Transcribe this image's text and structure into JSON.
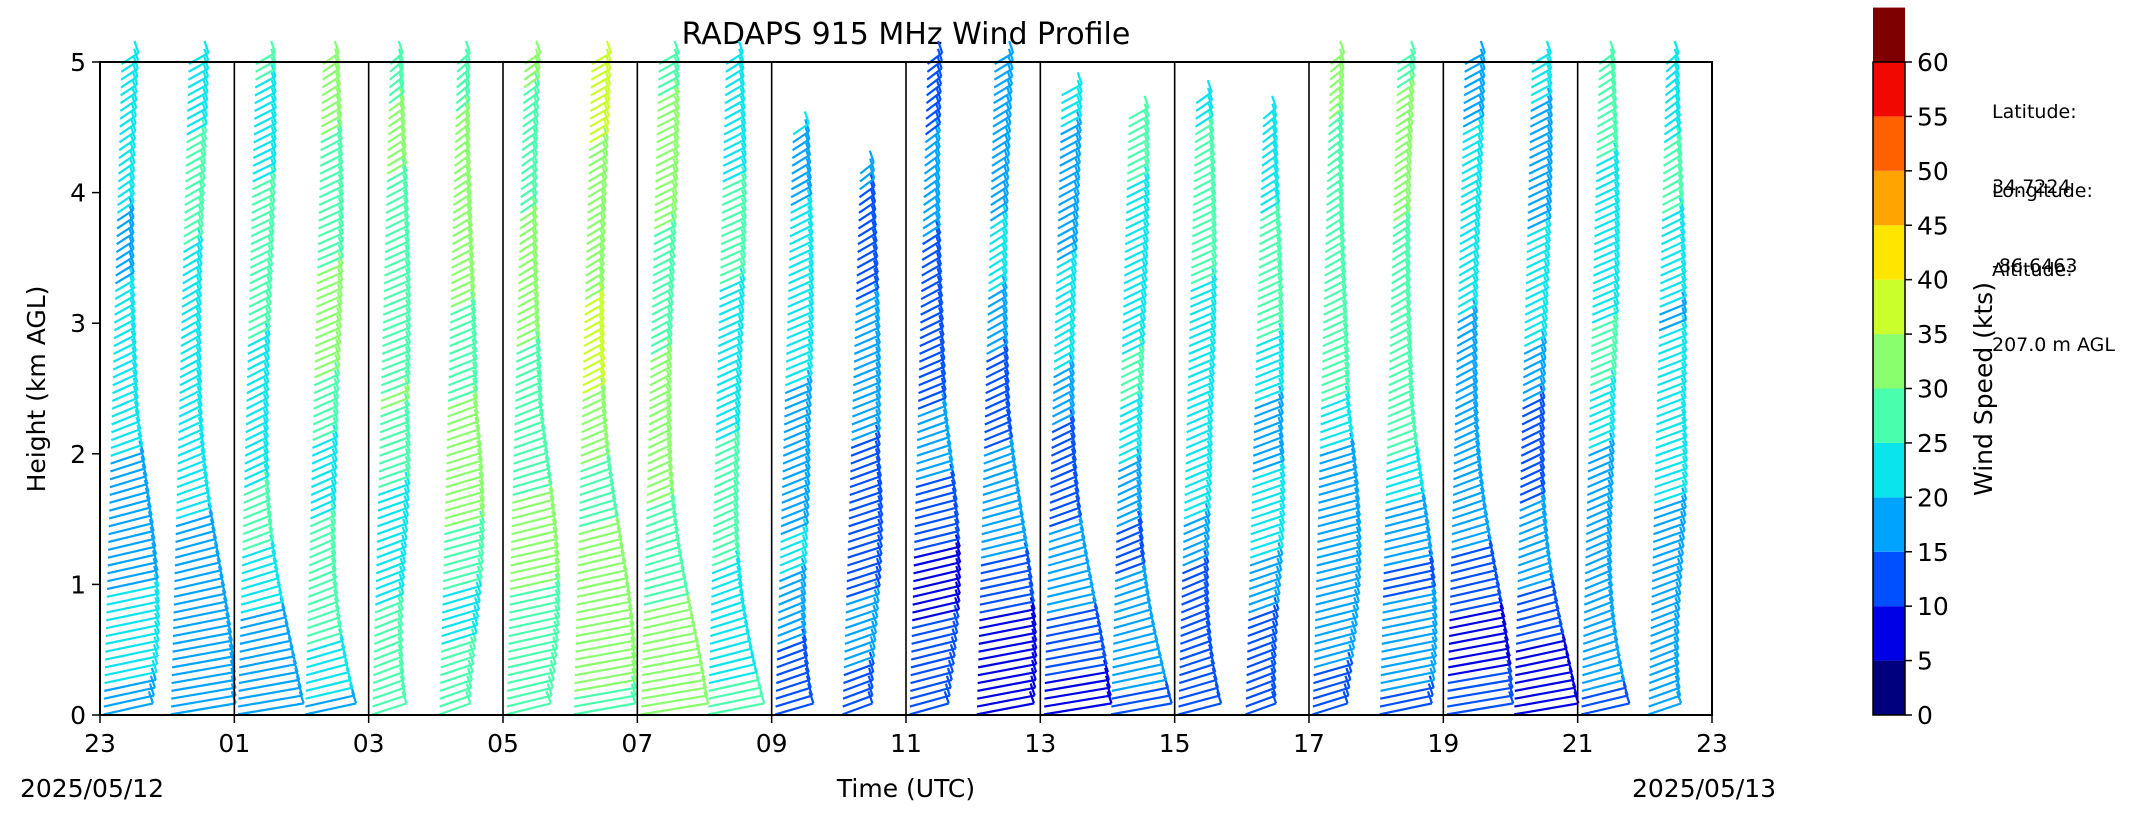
{
  "chart_data": {
    "type": "wind-barb",
    "title": "RADAPS 915 MHz Wind Profile",
    "xlabel": "Time (UTC)",
    "ylabel": "Height (km AGL)",
    "x_ticks": [
      "23",
      "01",
      "03",
      "05",
      "07",
      "09",
      "11",
      "13",
      "15",
      "17",
      "19",
      "21",
      "23"
    ],
    "x_tick_hours_utc": [
      23,
      25,
      27,
      29,
      31,
      33,
      35,
      37,
      39,
      41,
      43,
      45,
      47
    ],
    "xlim_hours_utc": [
      23,
      47
    ],
    "start_date": "2025/05/12",
    "end_date": "2025/05/13",
    "y_ticks": [
      0,
      1,
      2,
      3,
      4,
      5
    ],
    "ylim": [
      0,
      5
    ],
    "colorbar": {
      "label": "Wind Speed (kts)",
      "ticks": [
        0,
        5,
        10,
        15,
        20,
        25,
        30,
        35,
        40,
        45,
        50,
        55,
        60
      ],
      "colors": [
        "#00007f",
        "#0000e6",
        "#0050ff",
        "#00a4ff",
        "#0ae4ec",
        "#49ffad",
        "#8aff6d",
        "#cbff2c",
        "#ffe600",
        "#ffa400",
        "#ff6000",
        "#f10800",
        "#7f0000"
      ]
    },
    "profiles_hours_utc": [
      23.0,
      24.0,
      25.0,
      26.0,
      27.0,
      28.0,
      29.0,
      30.0,
      31.0,
      32.0,
      33.0,
      34.0,
      35.0,
      36.0,
      37.0,
      38.0,
      39.0,
      40.0,
      41.0,
      42.0,
      43.0,
      44.0,
      45.0,
      46.0
    ],
    "profile_tops_km": [
      5.0,
      5.0,
      5.0,
      5.0,
      5.0,
      5.0,
      5.0,
      5.0,
      5.0,
      5.0,
      4.5,
      4.2,
      5.0,
      5.0,
      4.8,
      4.6,
      4.7,
      4.6,
      5.0,
      5.0,
      5.0,
      5.0,
      5.0,
      5.0
    ],
    "profile_low_speed_kts": [
      18,
      16,
      20,
      22,
      24,
      26,
      28,
      30,
      32,
      26,
      14,
      12,
      11,
      10,
      10,
      12,
      11,
      12,
      12,
      11,
      10,
      9,
      14,
      16
    ],
    "profile_high_speed_kts": [
      22,
      24,
      26,
      30,
      28,
      32,
      30,
      34,
      30,
      24,
      22,
      16,
      14,
      18,
      20,
      24,
      26,
      25,
      28,
      30,
      22,
      20,
      24,
      23
    ]
  },
  "station": {
    "latitude_label": "Latitude:",
    "latitude_value": "34.7224",
    "longitude_label": "Longitude:",
    "longitude_value": "-86.6463",
    "altitude_label": "Altitude:",
    "altitude_value": "207.0 m AGL"
  }
}
